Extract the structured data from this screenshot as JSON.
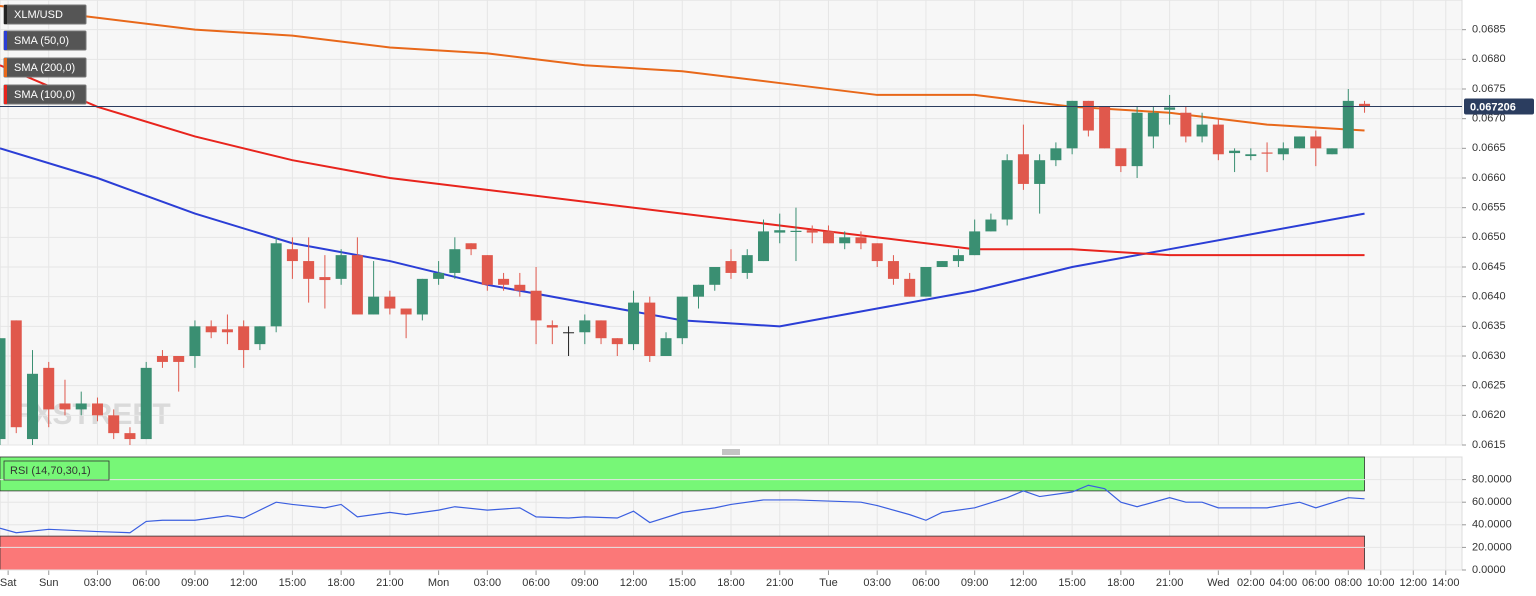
{
  "chart_data": [
    {
      "type": "candlestick",
      "title": "XLM/USD",
      "watermark": "FXSTREET",
      "up_color": "#3a8f72",
      "down_color": "#e0584c",
      "doji_color": "#222222",
      "last_price": 0.067206,
      "last_price_color": "#2b3d5f",
      "x": [
        -3,
        -2,
        -1,
        0,
        1,
        2,
        3,
        4,
        5,
        6,
        7,
        8,
        9,
        10,
        11,
        12,
        13,
        14,
        15,
        16,
        17,
        18,
        19,
        20,
        21,
        22,
        23,
        24,
        25,
        26,
        27,
        28,
        29,
        30,
        31,
        32,
        33,
        34,
        35,
        36,
        37,
        38,
        39,
        40,
        41,
        42,
        43,
        44,
        45,
        46,
        47,
        48,
        49,
        50,
        51,
        52,
        53,
        54,
        55,
        56,
        57,
        58,
        59,
        60,
        61,
        62,
        63,
        64,
        65,
        66,
        67,
        68,
        69,
        70,
        71,
        72,
        73,
        74,
        75,
        76,
        77,
        78,
        79,
        80,
        81
      ],
      "open": [
        0.0616,
        0.0636,
        0.0616,
        0.0628,
        0.0622,
        0.0621,
        0.0622,
        0.062,
        0.0617,
        0.0616,
        0.063,
        0.063,
        0.063,
        0.0635,
        0.06345,
        0.0635,
        0.0632,
        0.0635,
        0.0648,
        0.0646,
        0.06433,
        0.0643,
        0.0647,
        0.0637,
        0.064,
        0.0638,
        0.0637,
        0.0643,
        0.0644,
        0.0649,
        0.0647,
        0.0643,
        0.0642,
        0.0641,
        0.06352,
        0.0634,
        0.0634,
        0.0636,
        0.0633,
        0.0632,
        0.0639,
        0.063,
        0.0633,
        0.064,
        0.0642,
        0.0646,
        0.0644,
        0.0646,
        0.06508,
        0.06509,
        0.06512,
        0.0651,
        0.0649,
        0.065,
        0.0649,
        0.0646,
        0.0643,
        0.064,
        0.0645,
        0.0646,
        0.0647,
        0.0651,
        0.0653,
        0.0664,
        0.0659,
        0.0663,
        0.0665,
        0.0673,
        0.0672,
        0.0665,
        0.0662,
        0.0667,
        0.06715,
        0.0671,
        0.0667,
        0.0669,
        0.06642,
        0.06637,
        0.06643,
        0.0664,
        0.0665,
        0.0667,
        0.0664,
        0.0665,
        0.06725
      ],
      "high": [
        0.0633,
        0.0636,
        0.0631,
        0.0629,
        0.0626,
        0.0624,
        0.0623,
        0.0621,
        0.0618,
        0.0629,
        0.0631,
        0.063,
        0.0636,
        0.0636,
        0.0637,
        0.0636,
        0.0635,
        0.065,
        0.065,
        0.065,
        0.0647,
        0.0648,
        0.065,
        0.0646,
        0.0641,
        0.0638,
        0.0643,
        0.0646,
        0.065,
        0.0649,
        0.0647,
        0.0644,
        0.0644,
        0.0645,
        0.0636,
        0.0635,
        0.0637,
        0.0636,
        0.0633,
        0.0641,
        0.064,
        0.0634,
        0.064,
        0.0642,
        0.0645,
        0.0648,
        0.0648,
        0.0653,
        0.0654,
        0.0655,
        0.0652,
        0.0652,
        0.0651,
        0.0651,
        0.0649,
        0.0647,
        0.0644,
        0.0645,
        0.0646,
        0.0648,
        0.0653,
        0.0654,
        0.0664,
        0.0669,
        0.0664,
        0.0666,
        0.0673,
        0.0673,
        0.0672,
        0.0665,
        0.0672,
        0.0672,
        0.0674,
        0.0672,
        0.0671,
        0.067,
        0.0665,
        0.0665,
        0.0666,
        0.0666,
        0.0667,
        0.0668,
        0.0665,
        0.0675,
        0.0673
      ],
      "low": [
        0.0615,
        0.0617,
        0.0615,
        0.0618,
        0.062,
        0.062,
        0.0619,
        0.0616,
        0.0615,
        0.0616,
        0.0628,
        0.0624,
        0.0628,
        0.0633,
        0.0632,
        0.0628,
        0.0631,
        0.0634,
        0.0643,
        0.0639,
        0.0638,
        0.0642,
        0.0637,
        0.0637,
        0.0637,
        0.0633,
        0.0636,
        0.0642,
        0.0643,
        0.0647,
        0.0641,
        0.0641,
        0.064,
        0.0632,
        0.0632,
        0.063,
        0.0632,
        0.0632,
        0.063,
        0.0631,
        0.0629,
        0.063,
        0.0632,
        0.0638,
        0.0641,
        0.0643,
        0.0643,
        0.0646,
        0.0649,
        0.0646,
        0.0649,
        0.0649,
        0.0648,
        0.0648,
        0.0645,
        0.0642,
        0.064,
        0.064,
        0.0645,
        0.0645,
        0.0647,
        0.0651,
        0.0652,
        0.0658,
        0.0654,
        0.0662,
        0.0664,
        0.0667,
        0.0665,
        0.0661,
        0.066,
        0.0665,
        0.0669,
        0.0666,
        0.0666,
        0.0663,
        0.0661,
        0.0663,
        0.0661,
        0.0663,
        0.0665,
        0.0662,
        0.0664,
        0.0665,
        0.0671
      ],
      "close": [
        0.0633,
        0.0618,
        0.0627,
        0.0621,
        0.0621,
        0.0622,
        0.062,
        0.0617,
        0.0616,
        0.0628,
        0.0629,
        0.0629,
        0.0635,
        0.0634,
        0.0634,
        0.0631,
        0.0635,
        0.0649,
        0.0646,
        0.0643,
        0.06428,
        0.0647,
        0.0637,
        0.064,
        0.0638,
        0.0637,
        0.0643,
        0.0644,
        0.0648,
        0.0648,
        0.0642,
        0.0642,
        0.0641,
        0.0636,
        0.06348,
        0.0634,
        0.0636,
        0.0633,
        0.0632,
        0.0639,
        0.063,
        0.0633,
        0.064,
        0.0642,
        0.0645,
        0.0644,
        0.0647,
        0.0651,
        0.06512,
        0.06511,
        0.06508,
        0.0649,
        0.065,
        0.0649,
        0.0646,
        0.0643,
        0.064,
        0.0645,
        0.0646,
        0.0647,
        0.0651,
        0.0653,
        0.0663,
        0.0659,
        0.0663,
        0.0665,
        0.0673,
        0.0668,
        0.0665,
        0.0662,
        0.0671,
        0.0671,
        0.06719,
        0.0667,
        0.0669,
        0.0664,
        0.06646,
        0.0664,
        0.06641,
        0.0665,
        0.0667,
        0.0665,
        0.0665,
        0.0673,
        0.067206
      ],
      "overlays": [
        {
          "name": "SMA (50,0)",
          "color": "#2b3ed6",
          "x": [
            -3,
            3,
            9,
            15,
            21,
            27,
            33,
            39,
            45,
            51,
            57,
            63,
            69,
            75,
            81
          ],
          "values": [
            0.0665,
            0.066,
            0.0654,
            0.0649,
            0.0646,
            0.0642,
            0.0639,
            0.0636,
            0.0635,
            0.0638,
            0.0641,
            0.0645,
            0.0648,
            0.0651,
            0.0654
          ]
        },
        {
          "name": "SMA (200,0)",
          "color": "#e8681a",
          "x": [
            -3,
            3,
            9,
            15,
            21,
            27,
            33,
            39,
            45,
            51,
            57,
            63,
            69,
            75,
            81
          ],
          "values": [
            0.0689,
            0.0687,
            0.0685,
            0.0684,
            0.0682,
            0.0681,
            0.0679,
            0.0678,
            0.0676,
            0.0674,
            0.0674,
            0.0672,
            0.0671,
            0.0669,
            0.0668
          ]
        },
        {
          "name": "SMA (100,0)",
          "color": "#e8241d",
          "x": [
            -3,
            3,
            9,
            15,
            21,
            27,
            33,
            39,
            45,
            51,
            57,
            63,
            69,
            75,
            81
          ],
          "values": [
            0.0679,
            0.0672,
            0.0667,
            0.0663,
            0.066,
            0.0658,
            0.0656,
            0.0654,
            0.0652,
            0.065,
            0.0648,
            0.0648,
            0.0647,
            0.0647,
            0.0647
          ]
        }
      ],
      "xlim": [
        -3,
        87
      ],
      "ylim": [
        0.0615,
        0.069
      ],
      "yticks": [
        0.0685,
        {
          "value": 0.068,
          "label": "0.0680"
        },
        0.0675,
        {
          "value": 0.067,
          "label": "0.0670"
        },
        0.0665,
        {
          "value": 0.066,
          "label": "0.0660"
        },
        0.0655,
        {
          "value": 0.065,
          "label": "0.0650"
        },
        0.0645,
        {
          "value": 0.064,
          "label": "0.0640"
        },
        0.0635,
        {
          "value": 0.063,
          "label": "0.0630"
        },
        0.0625,
        {
          "value": 0.062,
          "label": "0.0620"
        },
        0.0615
      ],
      "grid": true
    },
    {
      "type": "line",
      "series": [
        {
          "name": "RSI (14,70,30,1)",
          "color": "#3b5fe0",
          "x": [
            -3,
            -2,
            0,
            3,
            5,
            6,
            7,
            9,
            11,
            12,
            14,
            15,
            17,
            18,
            19,
            21,
            22,
            24,
            25,
            27,
            29,
            30,
            32,
            33,
            35,
            36,
            37,
            39,
            41,
            42,
            44,
            46,
            48,
            50,
            51,
            53,
            54,
            55,
            57,
            59,
            60,
            61,
            63,
            64,
            65,
            66,
            67,
            69,
            70,
            71,
            72,
            75,
            77,
            78,
            80,
            81
          ],
          "values": [
            37,
            33,
            36,
            34,
            33,
            43,
            44,
            44,
            48,
            46,
            60,
            58,
            55,
            58,
            47,
            51,
            49,
            53,
            56,
            53,
            55,
            47,
            46,
            47,
            46,
            52,
            42,
            51,
            55,
            58,
            62,
            62,
            61,
            60,
            57,
            49,
            44,
            51,
            55,
            64,
            70,
            65,
            69,
            75,
            72,
            60,
            56,
            64,
            60,
            60,
            55,
            55,
            60,
            55,
            64,
            63
          ]
        }
      ],
      "bands": [
        {
          "from": 70,
          "to": 100,
          "color": "#77f777"
        },
        {
          "from": 0,
          "to": 30,
          "color": "#fb7878"
        }
      ],
      "xlim": [
        -3,
        87
      ],
      "ylim": [
        0,
        100
      ],
      "yticks": [
        {
          "value": 80,
          "label": "80.0000"
        },
        {
          "value": 60,
          "label": "60.0000"
        },
        {
          "value": 40,
          "label": "40.0000"
        },
        {
          "value": 20,
          "label": "20.0000"
        },
        {
          "value": 0,
          "label": "0.0000"
        }
      ],
      "xticks": [
        {
          "value": -2.5,
          "label": "Sat"
        },
        {
          "value": 0,
          "label": "Sun"
        },
        {
          "value": 3,
          "label": "03:00"
        },
        {
          "value": 6,
          "label": "06:00"
        },
        {
          "value": 9,
          "label": "09:00"
        },
        {
          "value": 12,
          "label": "12:00"
        },
        {
          "value": 15,
          "label": "15:00"
        },
        {
          "value": 18,
          "label": "18:00"
        },
        {
          "value": 21,
          "label": "21:00"
        },
        {
          "value": 24,
          "label": "Mon"
        },
        {
          "value": 27,
          "label": "03:00"
        },
        {
          "value": 30,
          "label": "06:00"
        },
        {
          "value": 33,
          "label": "09:00"
        },
        {
          "value": 36,
          "label": "12:00"
        },
        {
          "value": 39,
          "label": "15:00"
        },
        {
          "value": 42,
          "label": "18:00"
        },
        {
          "value": 45,
          "label": "21:00"
        },
        {
          "value": 48,
          "label": "Tue"
        },
        {
          "value": 51,
          "label": "03:00"
        },
        {
          "value": 54,
          "label": "06:00"
        },
        {
          "value": 57,
          "label": "09:00"
        },
        {
          "value": 60,
          "label": "12:00"
        },
        {
          "value": 63,
          "label": "15:00"
        },
        {
          "value": 66,
          "label": "18:00"
        },
        {
          "value": 69,
          "label": "21:00"
        },
        {
          "value": 72,
          "label": "Wed"
        },
        {
          "value": 74,
          "label": "02:00"
        },
        {
          "value": 76,
          "label": "04:00"
        },
        {
          "value": 78,
          "label": "06:00"
        },
        {
          "value": 80,
          "label": "08:00"
        },
        {
          "value": 82,
          "label": "10:00"
        },
        {
          "value": 84,
          "label": "12:00"
        },
        {
          "value": 86,
          "label": "14:00"
        }
      ],
      "grid": true
    }
  ]
}
